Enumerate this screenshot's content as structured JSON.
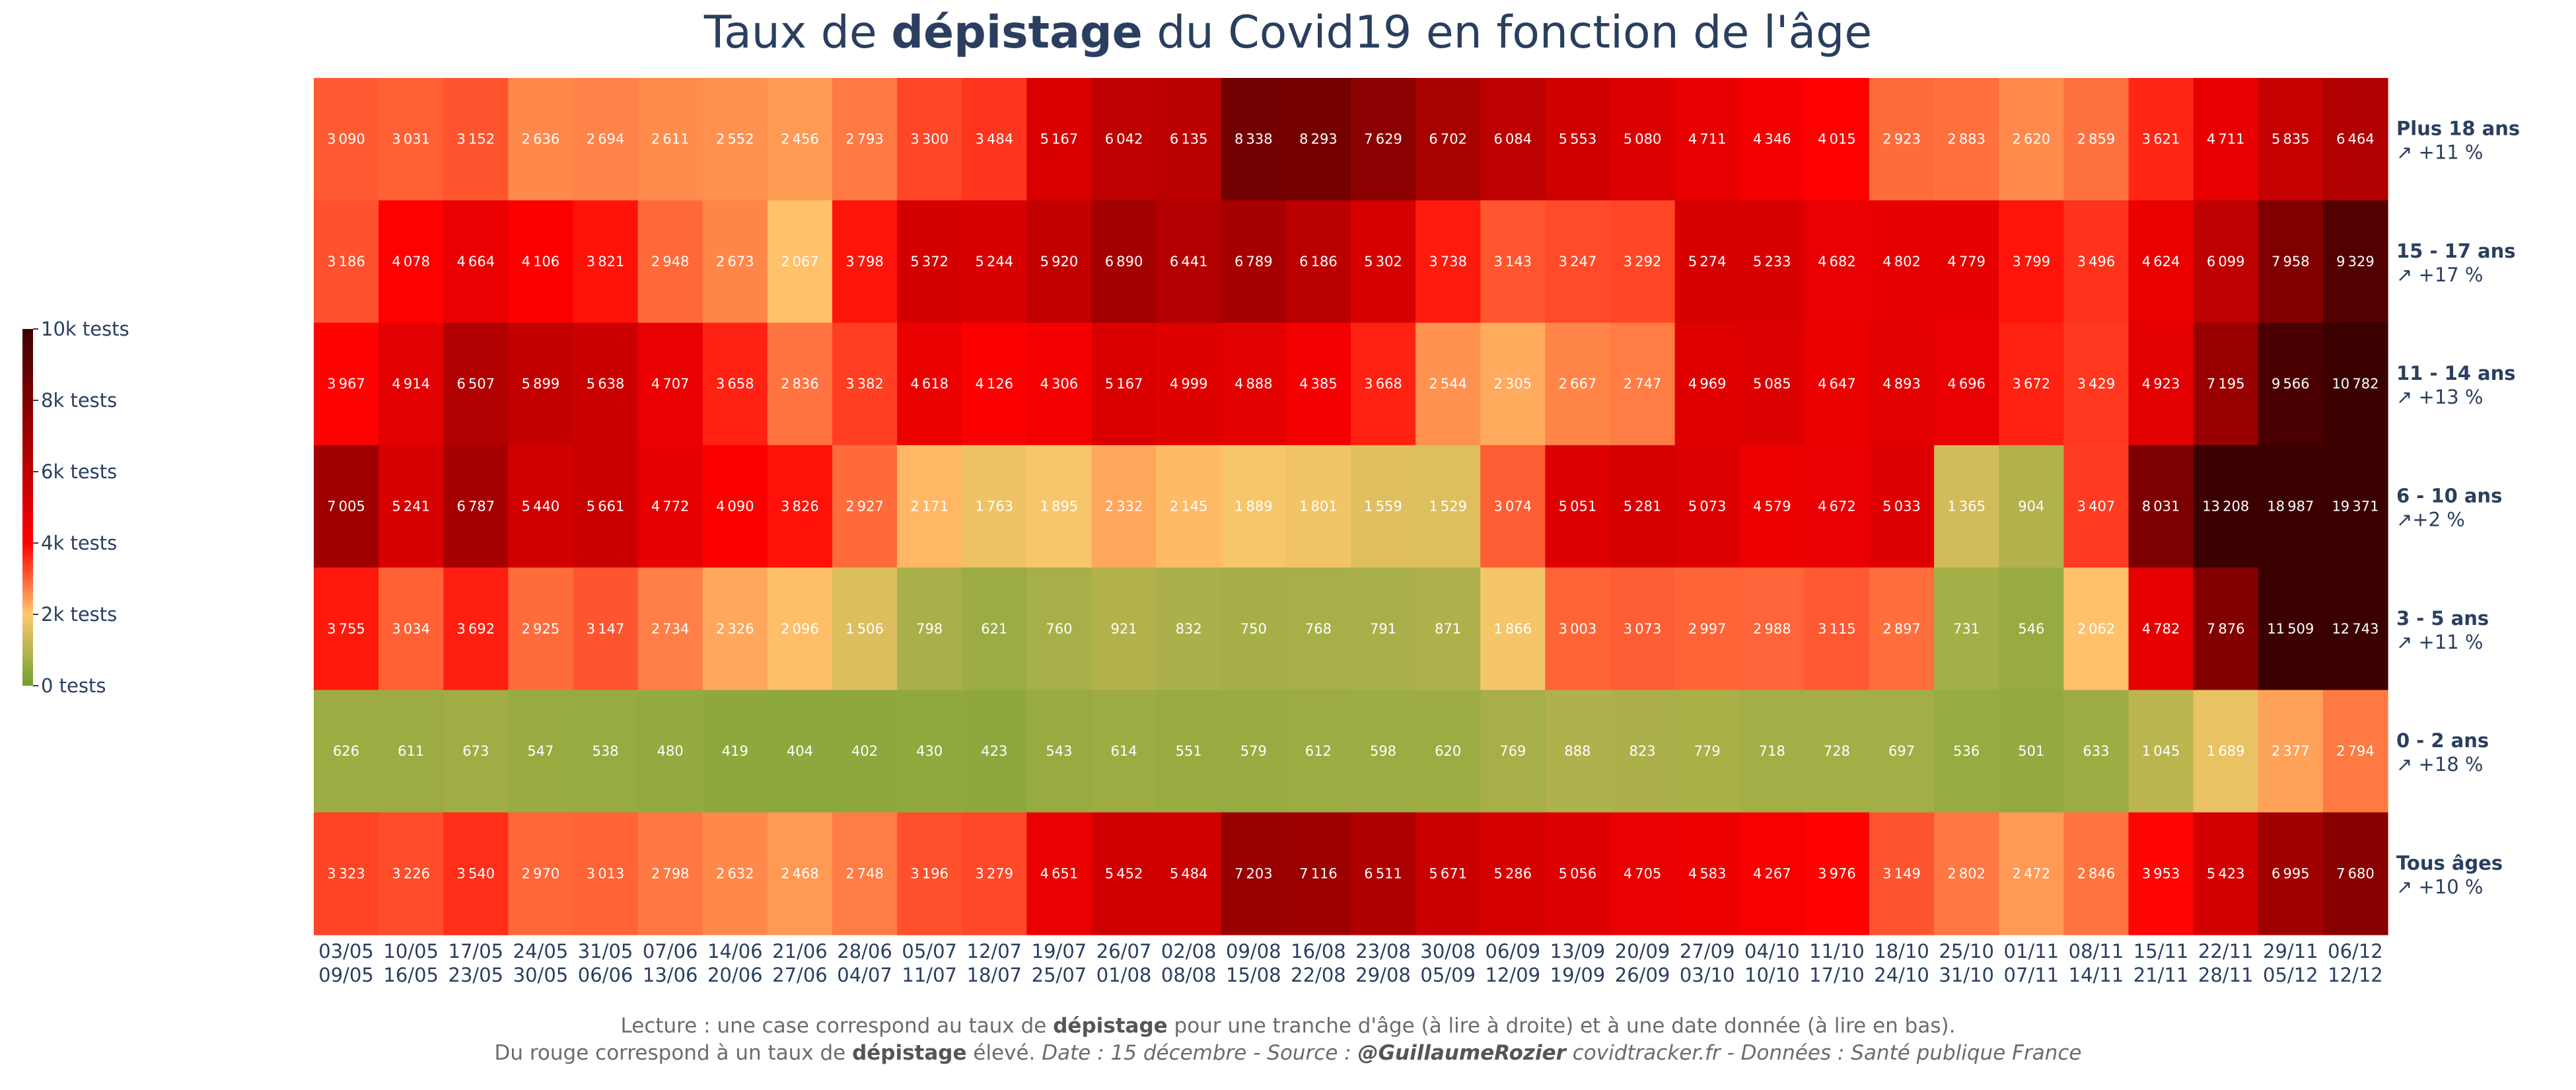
{
  "title": {
    "pre": "Taux de ",
    "bold": "dépistage",
    "post": " du Covid19 en fonction de l'âge"
  },
  "footer": {
    "line1_pre": "Lecture : une case correspond au taux de ",
    "line1_bold": "dépistage",
    "line1_post": " pour une tranche d'âge (à lire à droite) et à une date donnée (à lire en bas).",
    "line2_pre": "Du rouge correspond à un taux de ",
    "line2_bold": "dépistage",
    "line2_mid": " élevé.  ",
    "line2_italic_pre": "Date : 15 décembre - Source : ",
    "line2_italic_bold": "@GuillaumeRozier",
    "line2_italic_post": " covidtracker.fr - Données : Santé publique France"
  },
  "colors": {
    "low": "#70a030",
    "mid_low": "#ffc86e",
    "mid": "#ff0000",
    "high": "#3b0000",
    "text": "#2a3f5f"
  },
  "chart_data": {
    "type": "heatmap",
    "title": "Taux de dépistage du Covid19 en fonction de l'âge",
    "x": [
      [
        "03/05",
        "09/05"
      ],
      [
        "10/05",
        "16/05"
      ],
      [
        "17/05",
        "23/05"
      ],
      [
        "24/05",
        "30/05"
      ],
      [
        "31/05",
        "06/06"
      ],
      [
        "07/06",
        "13/06"
      ],
      [
        "14/06",
        "20/06"
      ],
      [
        "21/06",
        "27/06"
      ],
      [
        "28/06",
        "04/07"
      ],
      [
        "05/07",
        "11/07"
      ],
      [
        "12/07",
        "18/07"
      ],
      [
        "19/07",
        "25/07"
      ],
      [
        "26/07",
        "01/08"
      ],
      [
        "02/08",
        "08/08"
      ],
      [
        "09/08",
        "15/08"
      ],
      [
        "16/08",
        "22/08"
      ],
      [
        "23/08",
        "29/08"
      ],
      [
        "30/08",
        "05/09"
      ],
      [
        "06/09",
        "12/09"
      ],
      [
        "13/09",
        "19/09"
      ],
      [
        "20/09",
        "26/09"
      ],
      [
        "27/09",
        "03/10"
      ],
      [
        "04/10",
        "10/10"
      ],
      [
        "11/10",
        "17/10"
      ],
      [
        "18/10",
        "24/10"
      ],
      [
        "25/10",
        "31/10"
      ],
      [
        "01/11",
        "07/11"
      ],
      [
        "08/11",
        "14/11"
      ],
      [
        "15/11",
        "21/11"
      ],
      [
        "22/11",
        "28/11"
      ],
      [
        "29/11",
        "05/12"
      ],
      [
        "06/12",
        "12/12"
      ]
    ],
    "rows": [
      {
        "label": "Plus 18 ans",
        "change": "↗ +11 %",
        "values": [
          3090,
          3031,
          3152,
          2636,
          2694,
          2611,
          2552,
          2456,
          2793,
          3300,
          3484,
          5167,
          6042,
          6135,
          8338,
          8293,
          7629,
          6702,
          6084,
          5553,
          5080,
          4711,
          4346,
          4015,
          2923,
          2883,
          2620,
          2859,
          3621,
          4711,
          5835,
          6464
        ]
      },
      {
        "label": "15 - 17 ans",
        "change": "↗ +17 %",
        "values": [
          3186,
          4078,
          4664,
          4106,
          3821,
          2948,
          2673,
          2067,
          3798,
          5372,
          5244,
          5920,
          6890,
          6441,
          6789,
          6186,
          5302,
          3738,
          3143,
          3247,
          3292,
          5274,
          5233,
          4682,
          4802,
          4779,
          3799,
          3496,
          4624,
          6099,
          7958,
          9329
        ]
      },
      {
        "label": "11 - 14 ans",
        "change": "↗ +13 %",
        "values": [
          3967,
          4914,
          6507,
          5899,
          5638,
          4707,
          3658,
          2836,
          3382,
          4618,
          4126,
          4306,
          5167,
          4999,
          4888,
          4385,
          3668,
          2544,
          2305,
          2667,
          2747,
          4969,
          5085,
          4647,
          4893,
          4696,
          3672,
          3429,
          4923,
          7195,
          9566,
          10782
        ]
      },
      {
        "label": "6 - 10 ans",
        "change": " ↗+2 %",
        "values": [
          7005,
          5241,
          6787,
          5440,
          5661,
          4772,
          4090,
          3826,
          2927,
          2171,
          1763,
          1895,
          2332,
          2145,
          1889,
          1801,
          1559,
          1529,
          3074,
          5051,
          5281,
          5073,
          4579,
          4672,
          5033,
          1365,
          904,
          3407,
          8031,
          13208,
          18987,
          19371
        ]
      },
      {
        "label": "3 - 5 ans",
        "change": "↗ +11 %",
        "values": [
          3755,
          3034,
          3692,
          2925,
          3147,
          2734,
          2326,
          2096,
          1506,
          798,
          621,
          760,
          921,
          832,
          750,
          768,
          791,
          871,
          1866,
          3003,
          3073,
          2997,
          2988,
          3115,
          2897,
          731,
          546,
          2062,
          4782,
          7876,
          11509,
          12743
        ]
      },
      {
        "label": "0 - 2 ans",
        "change": "↗ +18 %",
        "values": [
          626,
          611,
          673,
          547,
          538,
          480,
          419,
          404,
          402,
          430,
          423,
          543,
          614,
          551,
          579,
          612,
          598,
          620,
          769,
          888,
          823,
          779,
          718,
          728,
          697,
          536,
          501,
          633,
          1045,
          1689,
          2377,
          2794
        ]
      },
      {
        "label": "Tous âges",
        "change": "↗ +10 %",
        "values": [
          3323,
          3226,
          3540,
          2970,
          3013,
          2798,
          2632,
          2468,
          2748,
          3196,
          3279,
          4651,
          5452,
          5484,
          7203,
          7116,
          6511,
          5671,
          5286,
          5056,
          4705,
          4583,
          4267,
          3976,
          3149,
          2802,
          2472,
          2846,
          3953,
          5423,
          6995,
          7680
        ]
      }
    ],
    "colorbar": {
      "ticks": [
        "0 tests",
        "2k tests",
        "4k tests",
        "6k tests",
        "8k tests",
        "10k tests"
      ],
      "range": [
        0,
        10000
      ]
    }
  }
}
